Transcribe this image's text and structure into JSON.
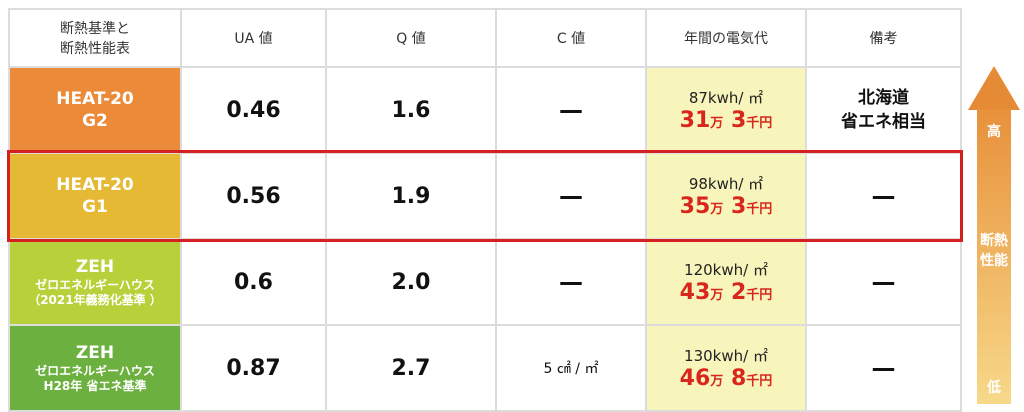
{
  "headers": [
    "断熱基準と\n断熱性能表",
    "UA 値",
    "Q 値",
    "C 値",
    "年間の電気代",
    "備考"
  ],
  "rows": [
    {
      "name": "HEAT-20",
      "sub": "G2",
      "sub2": "",
      "color": "#eb8a38",
      "ua": "0.46",
      "q": "1.6",
      "c": "—",
      "kwh": "87kwh/ ㎡",
      "man": "31",
      "man_unit": "万",
      "sen": "3",
      "sen_unit": "千円",
      "note": "北海道\n省エネ相当"
    },
    {
      "name": "HEAT-20",
      "sub": "G1",
      "sub2": "",
      "color": "#e6b935",
      "ua": "0.56",
      "q": "1.9",
      "c": "—",
      "kwh": "98kwh/ ㎡",
      "man": "35",
      "man_unit": "万",
      "sen": "3",
      "sen_unit": "千円",
      "note": "—"
    },
    {
      "name": "ZEH",
      "sub": "ゼロエネルギーハウス",
      "sub2": "（2021年義務化基準 ）",
      "color": "#b8d13a",
      "ua": "0.6",
      "q": "2.0",
      "c": "—",
      "kwh": "120kwh/ ㎡",
      "man": "43",
      "man_unit": "万",
      "sen": "2",
      "sen_unit": "千円",
      "note": "—"
    },
    {
      "name": "ZEH",
      "sub": "ゼロエネルギーハウス",
      "sub2": "H28年 省エネ基準",
      "color": "#6cb040",
      "ua": "0.87",
      "q": "2.7",
      "c": "5 ㎠ / ㎡",
      "kwh": "130kwh/ ㎡",
      "man": "46",
      "man_unit": "万",
      "sen": "8",
      "sen_unit": "千円",
      "note": "—"
    }
  ],
  "arrow": {
    "high": "高",
    "label": "断熱性能",
    "low": "低"
  }
}
